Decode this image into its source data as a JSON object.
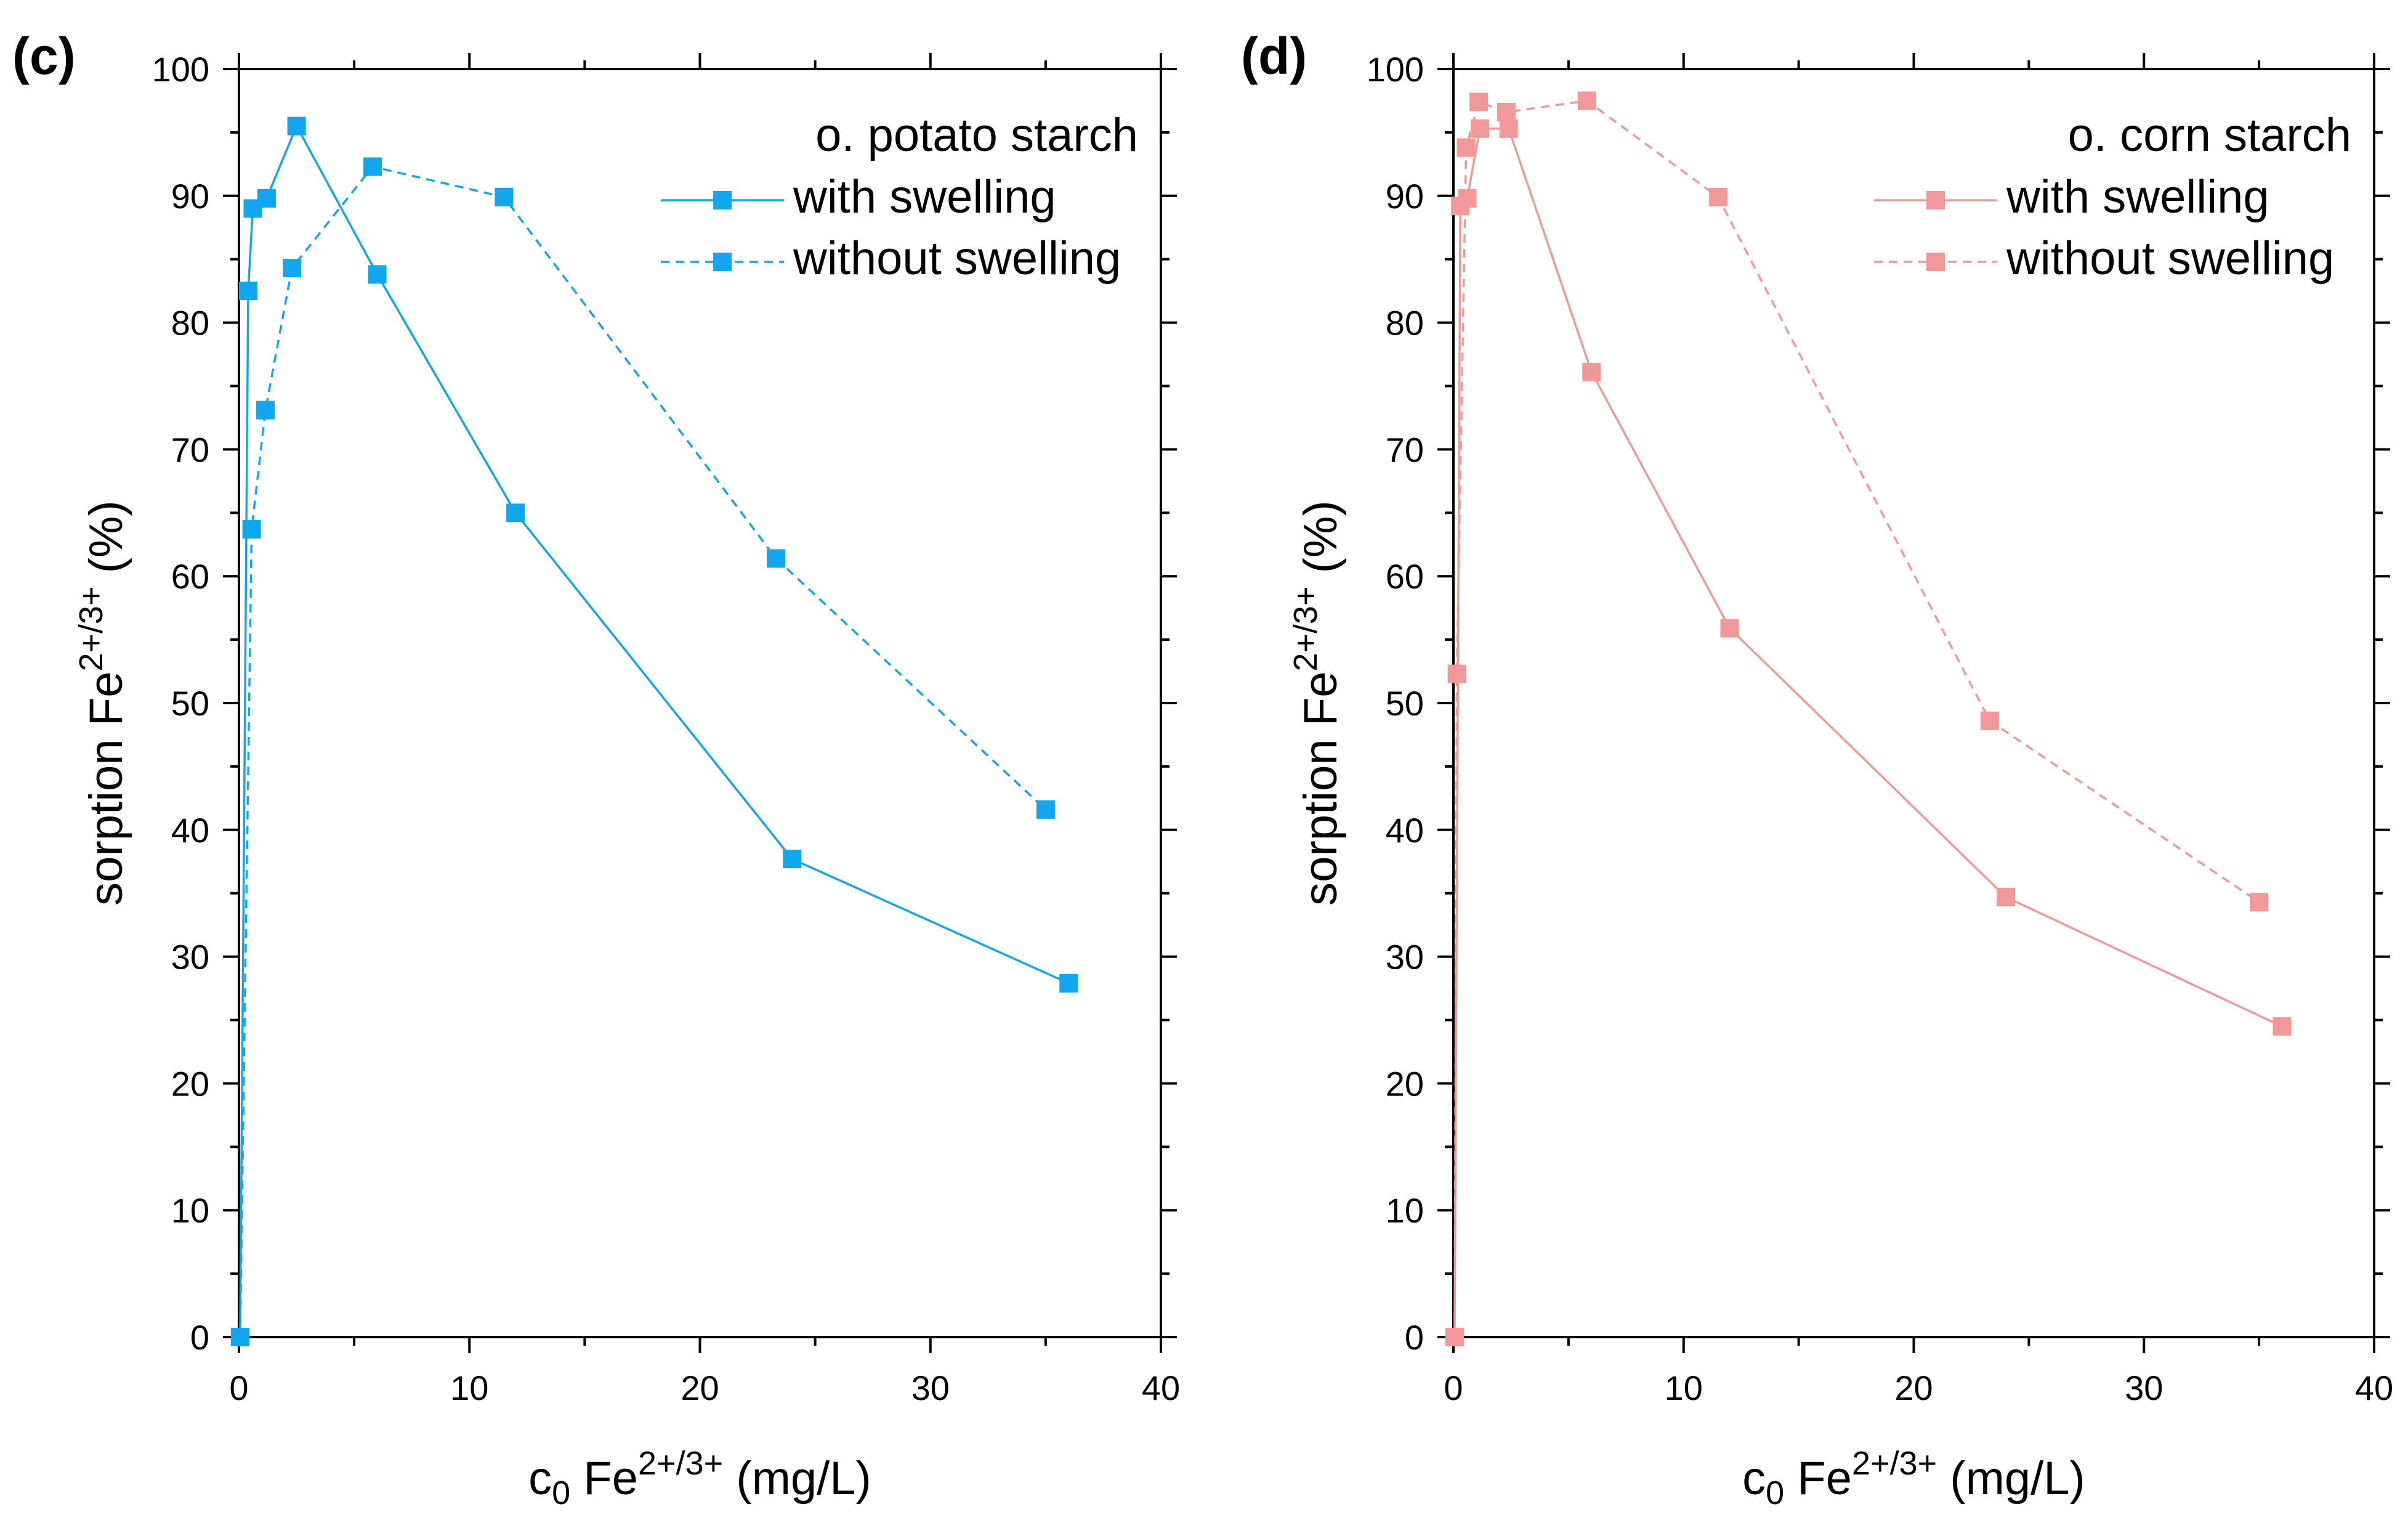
{
  "chart_data": [
    {
      "type": "line",
      "panel_label": "(c)",
      "legend_title": "o. potato starch",
      "legend_position": "top-right",
      "color": "#12A5F0",
      "xlabel": {
        "main": "c",
        "sub": "0",
        "mid": " Fe",
        "sup": "2+/3+",
        "unit": " (mg/L)"
      },
      "ylabel": {
        "main": "sorption Fe",
        "sup": "2+/3+",
        "unit": " (%)"
      },
      "xlim": [
        0,
        40
      ],
      "ylim": [
        0,
        100
      ],
      "xticks": [
        0,
        10,
        20,
        30,
        40
      ],
      "yticks": [
        0,
        10,
        20,
        30,
        40,
        50,
        60,
        70,
        80,
        90,
        100
      ],
      "grid": false,
      "series": [
        {
          "name": "with swelling",
          "style": "solid",
          "x": [
            0.05,
            0.4,
            0.6,
            1.2,
            2.5,
            6.0,
            12.0,
            24.0,
            36.0
          ],
          "y": [
            0,
            82.5,
            89,
            89.8,
            95.5,
            83.8,
            65,
            37.7,
            27.9
          ]
        },
        {
          "name": "without swelling",
          "style": "dashed",
          "x": [
            0.05,
            0.55,
            1.15,
            2.3,
            5.8,
            11.5,
            23.3,
            35.0
          ],
          "y": [
            0,
            63.7,
            73.1,
            84.3,
            92.3,
            89.9,
            61.4,
            41.6
          ]
        }
      ]
    },
    {
      "type": "line",
      "panel_label": "(d)",
      "legend_title": "o. corn starch",
      "legend_position": "top-right",
      "color": "#F39898",
      "xlabel": {
        "main": "c",
        "sub": "0",
        "mid": " Fe",
        "sup": "2+/3+",
        "unit": " (mg/L)"
      },
      "ylabel": {
        "main": "sorption Fe",
        "sup": "2+/3+",
        "unit": " (%)"
      },
      "xlim": [
        0,
        40
      ],
      "ylim": [
        0,
        100
      ],
      "xticks": [
        0,
        10,
        20,
        30,
        40
      ],
      "yticks": [
        0,
        10,
        20,
        30,
        40,
        50,
        60,
        70,
        80,
        90,
        100
      ],
      "grid": false,
      "series": [
        {
          "name": "with swelling",
          "style": "solid",
          "x": [
            0.05,
            0.3,
            0.6,
            1.15,
            2.4,
            6.0,
            12.0,
            24.0,
            36.0
          ],
          "y": [
            0,
            89.2,
            89.8,
            95.3,
            95.3,
            76.1,
            55.9,
            34.7,
            24.5
          ]
        },
        {
          "name": "without swelling",
          "style": "dashed",
          "x": [
            0.05,
            0.15,
            0.55,
            1.1,
            2.3,
            5.8,
            11.5,
            23.3,
            35.0
          ],
          "y": [
            0,
            52.3,
            93.8,
            97.4,
            96.6,
            97.5,
            89.9,
            48.6,
            34.3
          ]
        }
      ]
    }
  ]
}
